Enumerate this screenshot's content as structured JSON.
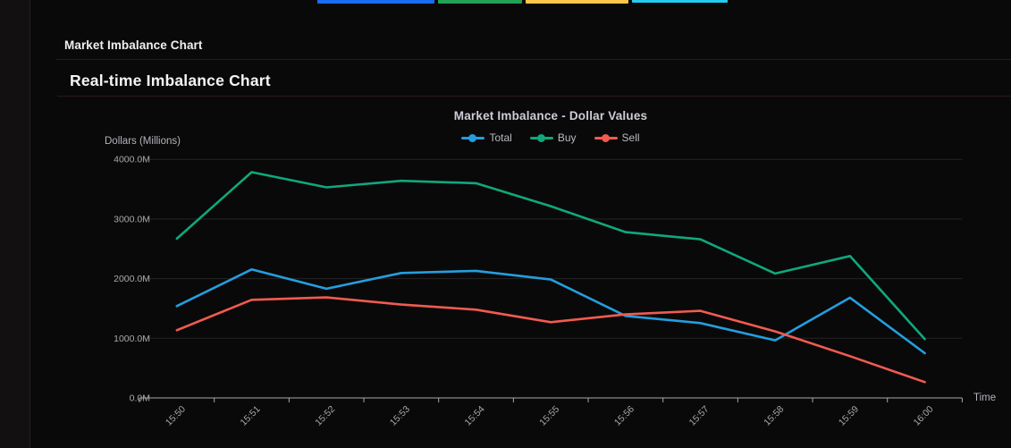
{
  "header": {
    "title": "Market Imbalance Chart"
  },
  "panel": {
    "title": "Real-time Imbalance Chart"
  },
  "top_bars": {
    "blue": "#1a6bf0",
    "green": "#22a254",
    "yellow": "#fdc64b",
    "cyan": "#24cdf0"
  },
  "chart_data": {
    "type": "line",
    "title": "Market Imbalance - Dollar Values",
    "xlabel": "Time",
    "ylabel": "Dollars (Millions)",
    "categories": [
      "15:50",
      "15:51",
      "15:52",
      "15:53",
      "15:54",
      "15:55",
      "15:56",
      "15:57",
      "15:58",
      "15:59",
      "16:00"
    ],
    "series": [
      {
        "name": "Total",
        "color": "#249edf",
        "values": [
          1540,
          2155,
          1830,
          2095,
          2130,
          1985,
          1375,
          1255,
          965,
          1680,
          750
        ]
      },
      {
        "name": "Buy",
        "color": "#0fa87c",
        "values": [
          2670,
          3785,
          3530,
          3640,
          3600,
          3215,
          2780,
          2660,
          2085,
          2380,
          985
        ]
      },
      {
        "name": "Sell",
        "color": "#f15b50",
        "values": [
          1135,
          1645,
          1685,
          1565,
          1480,
          1270,
          1400,
          1460,
          1115,
          700,
          265
        ]
      }
    ],
    "y_ticks": [
      "0.0M",
      "1000.0M",
      "2000.0M",
      "3000.0M",
      "4000.0M"
    ],
    "y_tick_values": [
      0,
      1000,
      2000,
      3000,
      4000
    ],
    "ylim": [
      0,
      4000
    ],
    "grid": true,
    "legend_position": "top",
    "units": "millions of dollars"
  },
  "chart_style": {
    "grid_color": "#242424",
    "axis_color": "#a9a9ab",
    "tick_label_color": "#a7a7af"
  }
}
